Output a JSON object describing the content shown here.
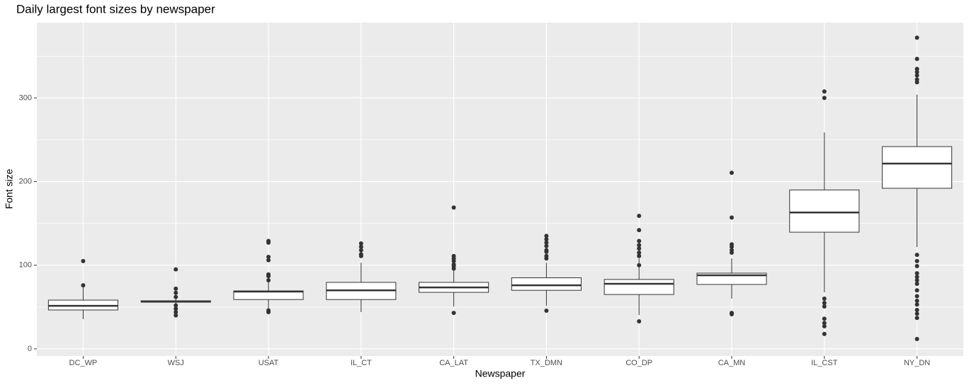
{
  "chart_data": {
    "type": "box",
    "title": "Daily largest font sizes by newspaper",
    "x_label": "Newspaper",
    "y_label": "Font size",
    "categories": [
      "DC_WP",
      "WSJ",
      "USAT",
      "IL_CT",
      "CA_LAT",
      "TX_DMN",
      "CO_DP",
      "CA_MN",
      "IL_CST",
      "NY_DN"
    ],
    "boxes": [
      {
        "min": 35.5,
        "q1": 46.5,
        "median": 51.5,
        "q3": 58.3,
        "max": 76,
        "outliers": [
          105,
          76
        ]
      },
      {
        "min": 53,
        "q1": 55.8,
        "median": 56.6,
        "q3": 57.5,
        "max": 60,
        "outliers": [
          95,
          72,
          67,
          62,
          52,
          48,
          44,
          40
        ]
      },
      {
        "min": 47,
        "q1": 59,
        "median": 68.5,
        "q3": 69.3,
        "max": 80,
        "outliers": [
          129,
          127,
          110,
          106,
          89,
          87,
          82,
          46,
          44
        ]
      },
      {
        "min": 44,
        "q1": 59,
        "median": 70,
        "q3": 79.5,
        "max": 103,
        "outliers": [
          126,
          122,
          118,
          113,
          111
        ]
      },
      {
        "min": 50.7,
        "q1": 67.6,
        "median": 73.5,
        "q3": 79.5,
        "max": 95.5,
        "outliers": [
          169,
          111,
          108,
          105,
          101,
          99,
          96,
          43
        ]
      },
      {
        "min": 51.5,
        "q1": 70,
        "median": 76,
        "q3": 85,
        "max": 103,
        "outliers": [
          135,
          131,
          127,
          123,
          118,
          116,
          111,
          108,
          45.6
        ]
      },
      {
        "min": 40.6,
        "q1": 65,
        "median": 77.8,
        "q3": 83,
        "max": 108,
        "outliers": [
          159,
          142,
          129,
          124,
          120,
          115,
          111,
          100,
          33
        ]
      },
      {
        "min": 60,
        "q1": 77,
        "median": 88,
        "q3": 90.5,
        "max": 108,
        "outliers": [
          210.5,
          157,
          125,
          122,
          118,
          115,
          43,
          41.4
        ]
      },
      {
        "min": 67.6,
        "q1": 139.5,
        "median": 163,
        "q3": 190,
        "max": 258.7,
        "outliers": [
          307.7,
          300,
          60,
          55,
          50.7,
          36,
          31,
          27,
          17.8
        ]
      },
      {
        "min": 121.7,
        "q1": 192,
        "median": 221.5,
        "q3": 241.8,
        "max": 304,
        "outliers": [
          372,
          346.6,
          334.7,
          331,
          327,
          322,
          318.7,
          112.4,
          105,
          99,
          90.4,
          86,
          82,
          77.8,
          70,
          63,
          57.5,
          53,
          46.5,
          42,
          37,
          11.8
        ]
      }
    ],
    "ylim": [
      -8.5,
      390
    ],
    "yticks": [
      0,
      100,
      200,
      300
    ],
    "yminorticks": [
      50,
      150,
      250,
      350
    ],
    "grid": true,
    "panel_color": "#ebebeb",
    "box_fill": "#ffffff",
    "line_color": "#333333"
  }
}
